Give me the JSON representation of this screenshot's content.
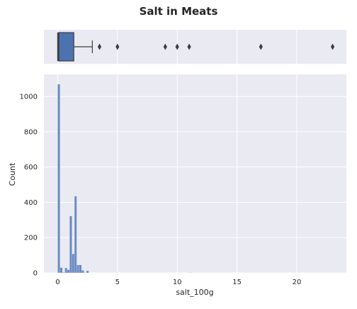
{
  "chart_data": {
    "type": "histogram",
    "title": "Salt in Meats",
    "xlabel": "salt_100g",
    "ylabel": "Count",
    "xlim": [
      -1.15,
      24.15
    ],
    "ylim": [
      0,
      1125
    ],
    "x_ticks": [
      0,
      5,
      10,
      15,
      20
    ],
    "y_ticks": [
      0,
      200,
      400,
      600,
      800,
      1000
    ],
    "grid": true,
    "background_color": "#eaeaf2",
    "grid_color": "#ffffff",
    "bar_color": "#6b8bc3",
    "box_color": "#4c72b0",
    "boxplot": {
      "min": 0,
      "q1": 0.05,
      "median": 0.1,
      "q3": 1.35,
      "whisker_high": 2.9,
      "outliers": [
        3.5,
        5.0,
        9.0,
        10.0,
        11.0,
        17.0,
        23.0
      ]
    },
    "histogram": {
      "bins": [
        {
          "x0": 0.0,
          "x1": 0.2,
          "count": 1070
        },
        {
          "x0": 0.2,
          "x1": 0.4,
          "count": 30
        },
        {
          "x0": 0.4,
          "x1": 0.6,
          "count": 3
        },
        {
          "x0": 0.6,
          "x1": 0.8,
          "count": 28
        },
        {
          "x0": 0.8,
          "x1": 1.0,
          "count": 18
        },
        {
          "x0": 1.0,
          "x1": 1.2,
          "count": 322
        },
        {
          "x0": 1.2,
          "x1": 1.4,
          "count": 108
        },
        {
          "x0": 1.4,
          "x1": 1.6,
          "count": 435
        },
        {
          "x0": 1.6,
          "x1": 1.8,
          "count": 45
        },
        {
          "x0": 1.8,
          "x1": 2.0,
          "count": 45
        },
        {
          "x0": 2.0,
          "x1": 2.2,
          "count": 15
        },
        {
          "x0": 2.2,
          "x1": 2.4,
          "count": 2
        },
        {
          "x0": 2.4,
          "x1": 2.6,
          "count": 12
        },
        {
          "x0": 11.0,
          "x1": 11.2,
          "count": 2
        }
      ]
    }
  }
}
